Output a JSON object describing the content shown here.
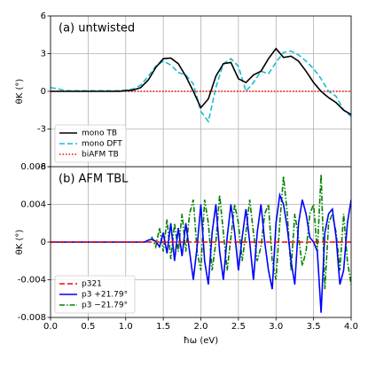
{
  "chart_data": [
    {
      "type": "line",
      "title": "(a) untwisted",
      "ylabel": "θK (°)",
      "x": [
        0,
        0.1,
        0.2,
        0.3,
        0.4,
        0.5,
        0.6,
        0.7,
        0.8,
        0.9,
        1.0,
        1.1,
        1.2,
        1.3,
        1.4,
        1.5,
        1.6,
        1.7,
        1.8,
        1.9,
        2.0,
        2.1,
        2.2,
        2.3,
        2.4,
        2.5,
        2.6,
        2.7,
        2.8,
        2.9,
        3.0,
        3.1,
        3.2,
        3.3,
        3.4,
        3.5,
        3.6,
        3.7,
        3.8,
        3.9,
        4.0
      ],
      "series": [
        {
          "name": "mono TB",
          "color": "#000000",
          "style": "solid",
          "values": [
            0,
            0,
            0,
            0,
            0,
            0,
            0,
            0,
            0,
            0,
            0.05,
            0.1,
            0.3,
            0.9,
            1.9,
            2.6,
            2.65,
            2.2,
            1.2,
            0,
            -1.3,
            -0.6,
            1.2,
            2.2,
            2.3,
            1.0,
            0.7,
            1.3,
            1.6,
            2.6,
            3.4,
            2.7,
            2.8,
            2.4,
            1.6,
            0.7,
            0,
            -0.5,
            -0.9,
            -1.5,
            -1.85
          ]
        },
        {
          "name": "mono DFT",
          "color": "#17becf",
          "style": "dashed",
          "values": [
            0.3,
            0.2,
            0.05,
            0.05,
            0.05,
            0.05,
            0.05,
            0.05,
            0.05,
            0.05,
            0.1,
            0.2,
            0.5,
            1.2,
            2.0,
            2.4,
            2.1,
            1.5,
            1.3,
            0.6,
            -1.6,
            -2.4,
            0.3,
            2.2,
            2.6,
            2.0,
            0,
            0.7,
            1.6,
            1.4,
            2.3,
            3.1,
            3.2,
            2.9,
            2.4,
            1.8,
            1.0,
            0,
            -0.4,
            -1.5,
            -2.0
          ]
        },
        {
          "name": "biAFM TB",
          "color": "#ff0000",
          "style": "dotted",
          "values": [
            0,
            0,
            0,
            0,
            0,
            0,
            0,
            0,
            0,
            0,
            0,
            0,
            0,
            0,
            0,
            0,
            0,
            0,
            0,
            0,
            0,
            0,
            0,
            0,
            0,
            0,
            0,
            0,
            0,
            0,
            0,
            0,
            0,
            0,
            0,
            0,
            0,
            0,
            0,
            0,
            0
          ]
        }
      ],
      "xlim": [
        0,
        4
      ],
      "xticks": [
        0,
        0.5,
        1,
        1.5,
        2,
        2.5,
        3,
        3.5,
        4
      ],
      "ylim": [
        -6,
        6
      ],
      "yticks": [
        -6,
        -3,
        0,
        3,
        6
      ],
      "grid": true,
      "legend": "lower left"
    },
    {
      "type": "line",
      "title": "(b) AFM TBL",
      "ylabel": "θK (°)",
      "xlabel": "ħω (eV)",
      "x": [
        0,
        0.05,
        0.1,
        0.15,
        0.2,
        0.25,
        0.3,
        0.35,
        0.4,
        0.45,
        0.5,
        0.55,
        0.6,
        0.65,
        0.7,
        0.75,
        0.8,
        0.85,
        0.9,
        0.95,
        1.0,
        1.05,
        1.1,
        1.15,
        1.2,
        1.25,
        1.3,
        1.35,
        1.4,
        1.45,
        1.5,
        1.55,
        1.6,
        1.65,
        1.7,
        1.75,
        1.8,
        1.85,
        1.9,
        1.95,
        2.0,
        2.05,
        2.1,
        2.15,
        2.2,
        2.25,
        2.3,
        2.35,
        2.4,
        2.45,
        2.5,
        2.55,
        2.6,
        2.65,
        2.7,
        2.75,
        2.8,
        2.85,
        2.9,
        2.95,
        3.0,
        3.05,
        3.1,
        3.15,
        3.2,
        3.25,
        3.3,
        3.35,
        3.4,
        3.45,
        3.5,
        3.55,
        3.6,
        3.65,
        3.7,
        3.75,
        3.8,
        3.85,
        3.9,
        3.95,
        4.0
      ],
      "series": [
        {
          "name": "p321",
          "color": "#ff0000",
          "style": "dashed",
          "values": [
            0,
            0,
            0,
            0,
            0,
            0,
            0,
            0,
            0,
            0,
            0,
            0,
            0,
            0,
            0,
            0,
            0,
            0,
            0,
            0,
            0,
            0,
            0,
            0,
            0,
            0,
            0,
            0,
            0,
            0,
            0,
            0,
            0,
            0,
            0,
            0,
            0,
            0,
            0,
            0,
            0,
            0,
            0,
            0,
            0,
            0,
            0,
            0,
            0,
            0,
            0,
            0,
            0,
            0,
            0,
            0,
            0,
            0,
            0,
            0,
            0,
            0,
            0,
            0,
            0,
            0,
            0,
            0,
            0,
            0,
            0,
            0,
            0,
            0,
            0,
            0,
            0,
            0,
            0,
            0,
            0
          ]
        },
        {
          "name": "p3 +21.79°",
          "color": "#0000ff",
          "style": "solid",
          "values": [
            0,
            0,
            0,
            0,
            0,
            0,
            0,
            0,
            0,
            0,
            0,
            0,
            0,
            0,
            0,
            0,
            0,
            0,
            0,
            0,
            0,
            0,
            0,
            0,
            0,
            0,
            0.0002,
            0.0003,
            0.0001,
            -0.0005,
            0.001,
            -0.0012,
            0.002,
            -0.002,
            0.0015,
            -0.0015,
            0.002,
            -0.001,
            -0.004,
            -0.0005,
            0.004,
            -0.002,
            -0.0045,
            0.001,
            0.004,
            -0.001,
            -0.004,
            0.0005,
            0.004,
            0.001,
            -0.003,
            0.0005,
            0.0035,
            0,
            -0.004,
            0.001,
            0.004,
            0,
            -0.003,
            -0.005,
            0.002,
            0.005,
            0.004,
            0.0015,
            -0.002,
            -0.0045,
            0.002,
            0.0045,
            0.003,
            0.0005,
            0,
            -0.001,
            -0.0075,
            0.001,
            0.003,
            0.0035,
            0.0005,
            -0.0045,
            -0.003,
            0.002,
            0.0045
          ]
        },
        {
          "name": "p3 −21.79°",
          "color": "#008000",
          "style": "dashdot",
          "values": [
            0,
            0,
            0,
            0,
            0,
            0,
            0,
            0,
            0,
            0,
            0,
            0,
            0,
            0,
            0,
            0,
            0,
            0,
            0,
            0,
            0,
            0,
            0,
            0,
            0,
            0,
            0.0001,
            0.0005,
            -0.0005,
            0.0015,
            -0.001,
            0.0024,
            -0.0018,
            0.002,
            -0.001,
            0.003,
            -0.001,
            0.003,
            0.0045,
            -0.001,
            -0.003,
            0.0045,
            0.002,
            -0.003,
            0,
            0.005,
            0.001,
            -0.003,
            0.0005,
            0.004,
            0.002,
            -0.002,
            0.001,
            0.0045,
            0.001,
            -0.002,
            -0.0005,
            0.003,
            0.004,
            -0.002,
            -0.004,
            0.002,
            0.007,
            0.003,
            -0.003,
            0.003,
            0.0005,
            -0.0025,
            -0.001,
            0.003,
            0.004,
            -0.001,
            0.0072,
            -0.005,
            0.002,
            0.003,
            0.001,
            -0.003,
            0.003,
            -0.002,
            -0.0045
          ]
        }
      ],
      "xlim": [
        0,
        4
      ],
      "xticks": [
        {
          "value": 0,
          "label": "0.0"
        },
        {
          "value": 0.5,
          "label": "0.5"
        },
        {
          "value": 1,
          "label": "1.0"
        },
        {
          "value": 1.5,
          "label": "1.5"
        },
        {
          "value": 2,
          "label": "2.0"
        },
        {
          "value": 2.5,
          "label": "2.5"
        },
        {
          "value": 3,
          "label": "3.0"
        },
        {
          "value": 3.5,
          "label": "3.5"
        },
        {
          "value": 4,
          "label": "4.0"
        }
      ],
      "ylim": [
        -0.008,
        0.008
      ],
      "yticks": [
        -0.008,
        -0.004,
        0,
        0.004,
        0.008
      ],
      "grid": true,
      "legend": "lower left"
    }
  ]
}
